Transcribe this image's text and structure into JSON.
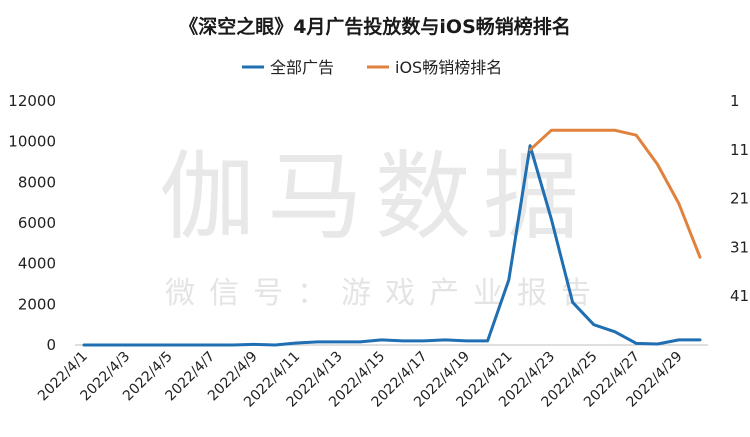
{
  "watermark": {
    "main": "伽马数据",
    "sub": "微信号：游戏产业报告"
  },
  "chart_data": {
    "type": "line",
    "title": "《深空之眼》4月广告投放数与iOS畅销榜排名",
    "legend_position": "top-center",
    "grid": false,
    "x": [
      "2022/4/1",
      "2022/4/2",
      "2022/4/3",
      "2022/4/4",
      "2022/4/5",
      "2022/4/6",
      "2022/4/7",
      "2022/4/8",
      "2022/4/9",
      "2022/4/10",
      "2022/4/11",
      "2022/4/12",
      "2022/4/13",
      "2022/4/14",
      "2022/4/15",
      "2022/4/16",
      "2022/4/17",
      "2022/4/18",
      "2022/4/19",
      "2022/4/20",
      "2022/4/21",
      "2022/4/22",
      "2022/4/23",
      "2022/4/24",
      "2022/4/25",
      "2022/4/26",
      "2022/4/27",
      "2022/4/28",
      "2022/4/29",
      "2022/4/30"
    ],
    "x_tick_labels": [
      "2022/4/1",
      "2022/4/3",
      "2022/4/5",
      "2022/4/7",
      "2022/4/9",
      "2022/4/11",
      "2022/4/13",
      "2022/4/15",
      "2022/4/17",
      "2022/4/19",
      "2022/4/21",
      "2022/4/23",
      "2022/4/25",
      "2022/4/27",
      "2022/4/29"
    ],
    "y_left": {
      "ticks": [
        0,
        2000,
        4000,
        6000,
        8000,
        10000,
        12000
      ],
      "ylim": [
        0,
        12000
      ]
    },
    "y_right": {
      "ticks": [
        1,
        11,
        21,
        31,
        41
      ],
      "ylim": [
        51,
        1
      ],
      "inverted": true
    },
    "series": [
      {
        "name": "全部广告",
        "axis": "left",
        "color": "#1f6fb2",
        "values": [
          0,
          0,
          0,
          0,
          0,
          0,
          0,
          0,
          30,
          0,
          100,
          150,
          150,
          150,
          250,
          200,
          200,
          250,
          200,
          200,
          3200,
          9800,
          6200,
          2100,
          1000,
          650,
          80,
          50,
          250,
          250
        ]
      },
      {
        "name": "iOS畅销榜排名",
        "axis": "right",
        "color": "#e0823d",
        "values": [
          null,
          null,
          null,
          null,
          null,
          null,
          null,
          null,
          null,
          null,
          null,
          null,
          null,
          null,
          null,
          null,
          null,
          null,
          null,
          null,
          null,
          11,
          7,
          7,
          7,
          7,
          8,
          14,
          22,
          33
        ]
      }
    ]
  }
}
